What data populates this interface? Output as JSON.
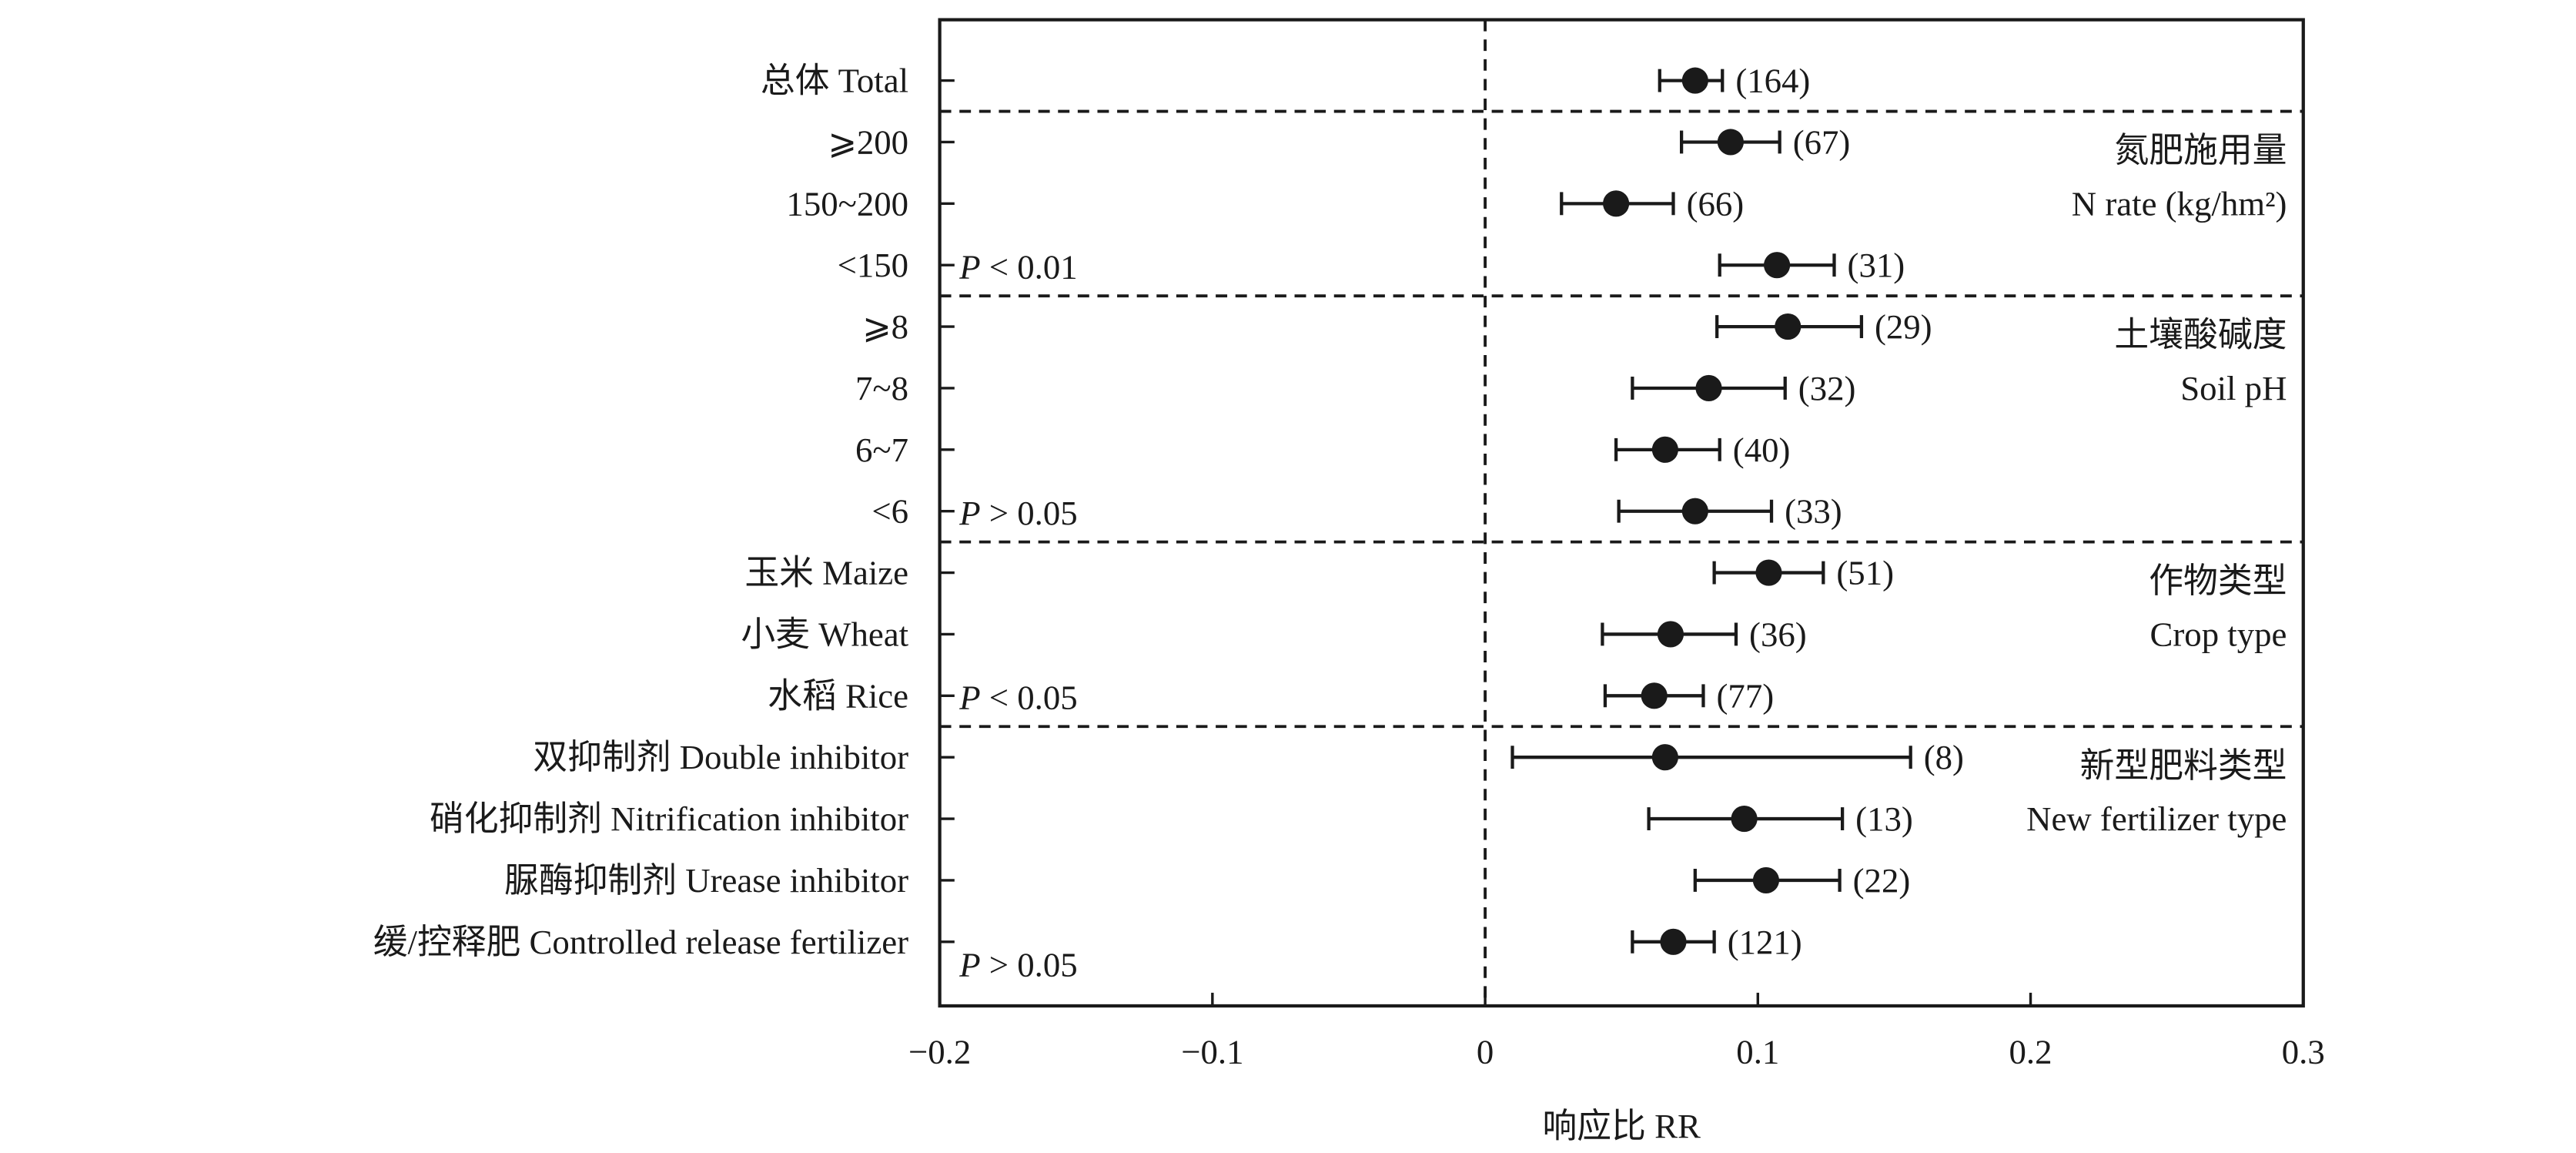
{
  "chart_data": {
    "type": "scatter",
    "xlabel": "响应比 RR",
    "xlim": [
      -0.2,
      0.3
    ],
    "x_ticks": [
      -0.2,
      -0.1,
      0,
      0.1,
      0.2,
      0.3
    ],
    "x_tick_labels": [
      "−0.2",
      "−0.1",
      "0",
      "0.1",
      "0.2",
      "0.3"
    ],
    "reference_line": 0,
    "grid": false,
    "groups": [
      {
        "rows": [
          {
            "label": "总体 Total",
            "rr": 0.077,
            "ci": [
              0.064,
              0.087
            ],
            "n": 164
          }
        ]
      },
      {
        "title": "氮肥施用量",
        "subtitle": "N rate (kg/hm²)",
        "p_label": "P < 0.01",
        "rows": [
          {
            "label": "⩾200",
            "rr": 0.09,
            "ci": [
              0.072,
              0.108
            ],
            "n": 67
          },
          {
            "label": "150~200",
            "rr": 0.048,
            "ci": [
              0.028,
              0.069
            ],
            "n": 66
          },
          {
            "label": "<150",
            "rr": 0.107,
            "ci": [
              0.086,
              0.128
            ],
            "n": 31
          }
        ]
      },
      {
        "title": "土壤酸碱度",
        "subtitle": "Soil pH",
        "p_label": "P > 0.05",
        "rows": [
          {
            "label": "⩾8",
            "rr": 0.111,
            "ci": [
              0.085,
              0.138
            ],
            "n": 29
          },
          {
            "label": "7~8",
            "rr": 0.082,
            "ci": [
              0.054,
              0.11
            ],
            "n": 32
          },
          {
            "label": "6~7",
            "rr": 0.066,
            "ci": [
              0.048,
              0.086
            ],
            "n": 40
          },
          {
            "label": "<6",
            "rr": 0.077,
            "ci": [
              0.049,
              0.105
            ],
            "n": 33
          }
        ]
      },
      {
        "title": "作物类型",
        "subtitle": "Crop type",
        "p_label": "P < 0.05",
        "rows": [
          {
            "label": "玉米 Maize",
            "rr": 0.104,
            "ci": [
              0.084,
              0.124
            ],
            "n": 51
          },
          {
            "label": "小麦 Wheat",
            "rr": 0.068,
            "ci": [
              0.043,
              0.092
            ],
            "n": 36
          },
          {
            "label": "水稻 Rice",
            "rr": 0.062,
            "ci": [
              0.044,
              0.08
            ],
            "n": 77
          }
        ]
      },
      {
        "title": "新型肥料类型",
        "subtitle": "New fertilizer type",
        "p_label": "P > 0.05",
        "rows": [
          {
            "label": "双抑制剂 Double inhibitor",
            "rr": 0.066,
            "ci": [
              0.01,
              0.156
            ],
            "n": 8
          },
          {
            "label": "硝化抑制剂 Nitrification inhibitor",
            "rr": 0.095,
            "ci": [
              0.06,
              0.131
            ],
            "n": 13
          },
          {
            "label": "脲酶抑制剂 Urease inhibitor",
            "rr": 0.103,
            "ci": [
              0.077,
              0.13
            ],
            "n": 22
          },
          {
            "label": "缓/控释肥 Controlled release fertilizer",
            "rr": 0.069,
            "ci": [
              0.054,
              0.084
            ],
            "n": 121
          }
        ]
      }
    ]
  }
}
